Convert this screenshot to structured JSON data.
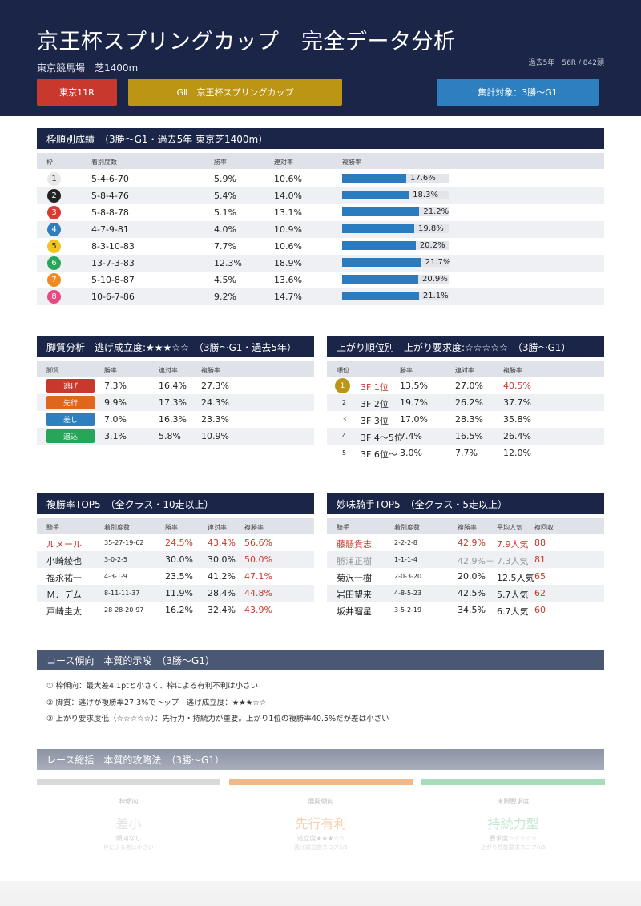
{
  "header": {
    "title": "京王杯スプリングカップ　完全データ分析",
    "subtitle": "東京競馬場　芝1400m",
    "meta": "過去5年　56R / 842頭",
    "btn_race": "東京11R",
    "btn_grade": "GⅡ　京王杯スプリングカップ",
    "btn_scope": "集計対象：3勝〜G1"
  },
  "waku": {
    "title": "枠順別成績　（3勝〜G1・過去5年 東京芝1400m）",
    "cols": [
      "枠",
      "着別度数",
      "勝率",
      "連対率",
      "複勝率"
    ],
    "rows": [
      {
        "n": "1",
        "rec": "5-4-6-70",
        "win": "5.9%",
        "ren": "10.6%",
        "fuku": "17.6%",
        "fv": 17.6,
        "bg": "#e8e8e8",
        "fg": "#333"
      },
      {
        "n": "2",
        "rec": "5-8-4-76",
        "win": "5.4%",
        "ren": "14.0%",
        "fuku": "18.3%",
        "fv": 18.3,
        "bg": "#222222",
        "fg": "#fff"
      },
      {
        "n": "3",
        "rec": "5-8-8-78",
        "win": "5.1%",
        "ren": "13.1%",
        "fuku": "21.2%",
        "fv": 21.2,
        "bg": "#d93a34",
        "fg": "#fff"
      },
      {
        "n": "4",
        "rec": "4-7-9-81",
        "win": "4.0%",
        "ren": "10.9%",
        "fuku": "19.8%",
        "fv": 19.8,
        "bg": "#2d7fc0",
        "fg": "#fff"
      },
      {
        "n": "5",
        "rec": "8-3-10-83",
        "win": "7.7%",
        "ren": "10.6%",
        "fuku": "20.2%",
        "fv": 20.2,
        "bg": "#f2c41c",
        "fg": "#333"
      },
      {
        "n": "6",
        "rec": "13-7-3-83",
        "win": "12.3%",
        "ren": "18.9%",
        "fuku": "21.7%",
        "fv": 21.7,
        "bg": "#27a65a",
        "fg": "#fff"
      },
      {
        "n": "7",
        "rec": "5-10-8-87",
        "win": "4.5%",
        "ren": "13.6%",
        "fuku": "20.9%",
        "fv": 20.9,
        "bg": "#ef8a23",
        "fg": "#fff"
      },
      {
        "n": "8",
        "rec": "10-6-7-86",
        "win": "9.2%",
        "ren": "14.7%",
        "fuku": "21.1%",
        "fv": 21.1,
        "bg": "#e84a7f",
        "fg": "#fff"
      }
    ]
  },
  "kyakushitsu": {
    "title": "脚質分析　逃げ成立度:★★★☆☆　（3勝〜G1・過去5年）",
    "cols": [
      "脚質",
      "勝率",
      "連対率",
      "複勝率"
    ],
    "rows": [
      {
        "tag": "逃げ",
        "color": "#c8382d",
        "win": "7.3%",
        "ren": "16.4%",
        "fuku": "27.3%"
      },
      {
        "tag": "先行",
        "color": "#e0661c",
        "win": "9.9%",
        "ren": "17.3%",
        "fuku": "24.3%"
      },
      {
        "tag": "差し",
        "color": "#2d7fc0",
        "win": "7.0%",
        "ren": "16.3%",
        "fuku": "23.3%"
      },
      {
        "tag": "追込",
        "color": "#27a65a",
        "win": "3.1%",
        "ren": "5.8%",
        "fuku": "10.9%"
      }
    ]
  },
  "agari": {
    "title": "上がり順位別　上がり要求度:☆☆☆☆☆　（3勝〜G1）",
    "cols": [
      "順位",
      "勝率",
      "連対率",
      "複勝率"
    ],
    "rows": [
      {
        "rank": "1",
        "label": "3F 1位",
        "win": "13.5%",
        "ren": "27.0%",
        "fuku": "40.5%"
      },
      {
        "rank": "2",
        "label": "3F 2位",
        "win": "19.7%",
        "ren": "26.2%",
        "fuku": "37.7%"
      },
      {
        "rank": "3",
        "label": "3F 3位",
        "win": "17.0%",
        "ren": "28.3%",
        "fuku": "35.8%"
      },
      {
        "rank": "4",
        "label": "3F 4〜5位",
        "win": "7.4%",
        "ren": "16.5%",
        "fuku": "26.4%"
      },
      {
        "rank": "5",
        "label": "3F 6位〜",
        "win": "3.0%",
        "ren": "7.7%",
        "fuku": "12.0%"
      }
    ]
  },
  "jockey_top": {
    "title": "複勝率TOP5　（全クラス・10走以上）",
    "cols": [
      "騎手",
      "着別度数",
      "勝率",
      "連対率",
      "複勝率"
    ],
    "rows": [
      {
        "name": "ルメール",
        "rec": "35-27-19-62",
        "win": "24.5%",
        "ren": "43.4%",
        "fuku": "56.6%"
      },
      {
        "name": "小崎綾也",
        "rec": "3-0-2-5",
        "win": "30.0%",
        "ren": "30.0%",
        "fuku": "50.0%"
      },
      {
        "name": "福永祐一",
        "rec": "4-3-1-9",
        "win": "23.5%",
        "ren": "41.2%",
        "fuku": "47.1%"
      },
      {
        "name": "Ｍ．デム",
        "rec": "8-11-11-37",
        "win": "11.9%",
        "ren": "28.4%",
        "fuku": "44.8%"
      },
      {
        "name": "戸崎圭太",
        "rec": "28-28-20-97",
        "win": "16.2%",
        "ren": "32.4%",
        "fuku": "43.9%"
      }
    ]
  },
  "jockey_myomi": {
    "title": "妙味騎手TOP5　（全クラス・5走以上）",
    "cols": [
      "騎手",
      "着別度数",
      "複勝率",
      "平均人気",
      "複回収"
    ],
    "rows": [
      {
        "name": "藤懸貴志",
        "rec": "2-2-2-8",
        "fuku": "42.9%",
        "ninki": "7.9人気",
        "kai": "88"
      },
      {
        "name": "勝浦正樹",
        "rec": "1-1-1-4",
        "fuku": "42.9%－",
        "ninki": "7.3人気",
        "kai": "81"
      },
      {
        "name": "菊沢一樹",
        "rec": "2-0-3-20",
        "fuku": "20.0%",
        "ninki": "12.5人気",
        "kai": "65"
      },
      {
        "name": "岩田望来",
        "rec": "4-8-5-23",
        "fuku": "42.5%",
        "ninki": "5.7人気",
        "kai": "62"
      },
      {
        "name": "坂井瑠星",
        "rec": "3-5-2-19",
        "fuku": "34.5%",
        "ninki": "6.7人気",
        "kai": "60"
      }
    ]
  },
  "course": {
    "title": "コース傾向　本質的示唆　（3勝〜G1）",
    "notes": [
      "① 枠傾向：最大差4.1ptと小さく、枠による有利不利は小さい",
      "② 脚質：逃げが複勝率27.3%でトップ　逃げ成立度：★★★☆☆",
      "③ 上がり要求度低（☆☆☆☆☆）：先行力・持続力が重要。上がり1位の複勝率40.5%だが差は小さい"
    ]
  },
  "summary": {
    "title": "レース総括　本質的攻略法　（3勝〜G1）",
    "cards": [
      {
        "label": "枠傾向",
        "big": "差小",
        "s1": "傾向なし",
        "s2": "枠による差は小さい",
        "bar": "#d9d9d9",
        "bigcolor": "#e3e3e3"
      },
      {
        "label": "展開傾向",
        "big": "先行有利",
        "s1": "逃立度★★★☆☆",
        "s2": "逃げ成立度スコア3/5",
        "bar": "#f0b98a",
        "bigcolor": "#f7cfae"
      },
      {
        "label": "末脚要求度",
        "big": "持続力型",
        "s1": "要求度☆☆☆☆☆",
        "s2": "上がり性能要求スコア0/5",
        "bar": "#a6dcb8",
        "bigcolor": "#c4e9d1"
      }
    ]
  }
}
